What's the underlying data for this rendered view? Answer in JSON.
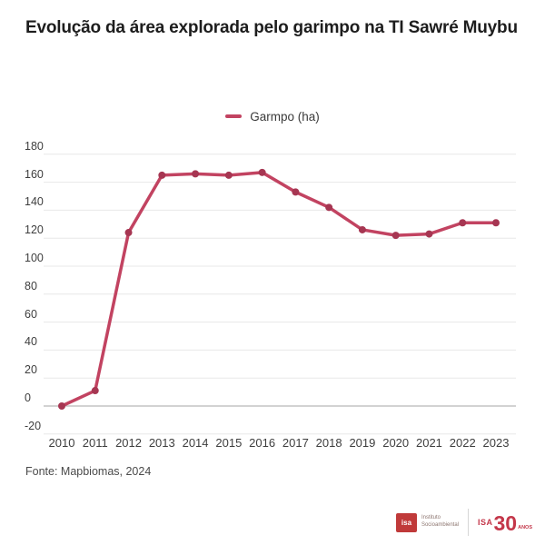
{
  "title": "Evolução da área explorada pelo garimpo na TI Sawré Muybu",
  "legend": {
    "label": "Garmpo (ha)"
  },
  "source": "Fonte: Mapbiomas, 2024",
  "logos": {
    "isa_acronym": "isa",
    "isa_name_line1": "Instituto",
    "isa_name_line2": "Socioambiental",
    "isa30_prefix": "ISA",
    "isa30_number": "30",
    "isa30_suffix": "ANOS"
  },
  "colors": {
    "line": "#c24361",
    "marker": "#a63652",
    "grid": "#e8e8e8",
    "zero_line": "#a6a6a6",
    "title_text": "#1d1d1d",
    "tick_text": "#3e3e3e",
    "source_text": "#4a4a4a",
    "logo_red": "#c4374a"
  },
  "chart_data": {
    "type": "line",
    "title": "Evolução da área explorada pelo garimpo na TI Sawré Muybu",
    "x": [
      "2010",
      "2011",
      "2012",
      "2013",
      "2014",
      "2015",
      "2016",
      "2017",
      "2018",
      "2019",
      "2020",
      "2021",
      "2022",
      "2023"
    ],
    "series": [
      {
        "name": "Garmpo (ha)",
        "values": [
          0,
          11,
          124,
          165,
          166,
          165,
          167,
          153,
          142,
          126,
          122,
          123,
          131,
          131
        ]
      }
    ],
    "xlabel": "",
    "ylabel": "",
    "ylim": [
      -20,
      180
    ],
    "yticks": [
      180,
      160,
      140,
      120,
      100,
      80,
      60,
      40,
      20,
      0,
      -20
    ],
    "grid": true,
    "legend_position": "top-center"
  }
}
